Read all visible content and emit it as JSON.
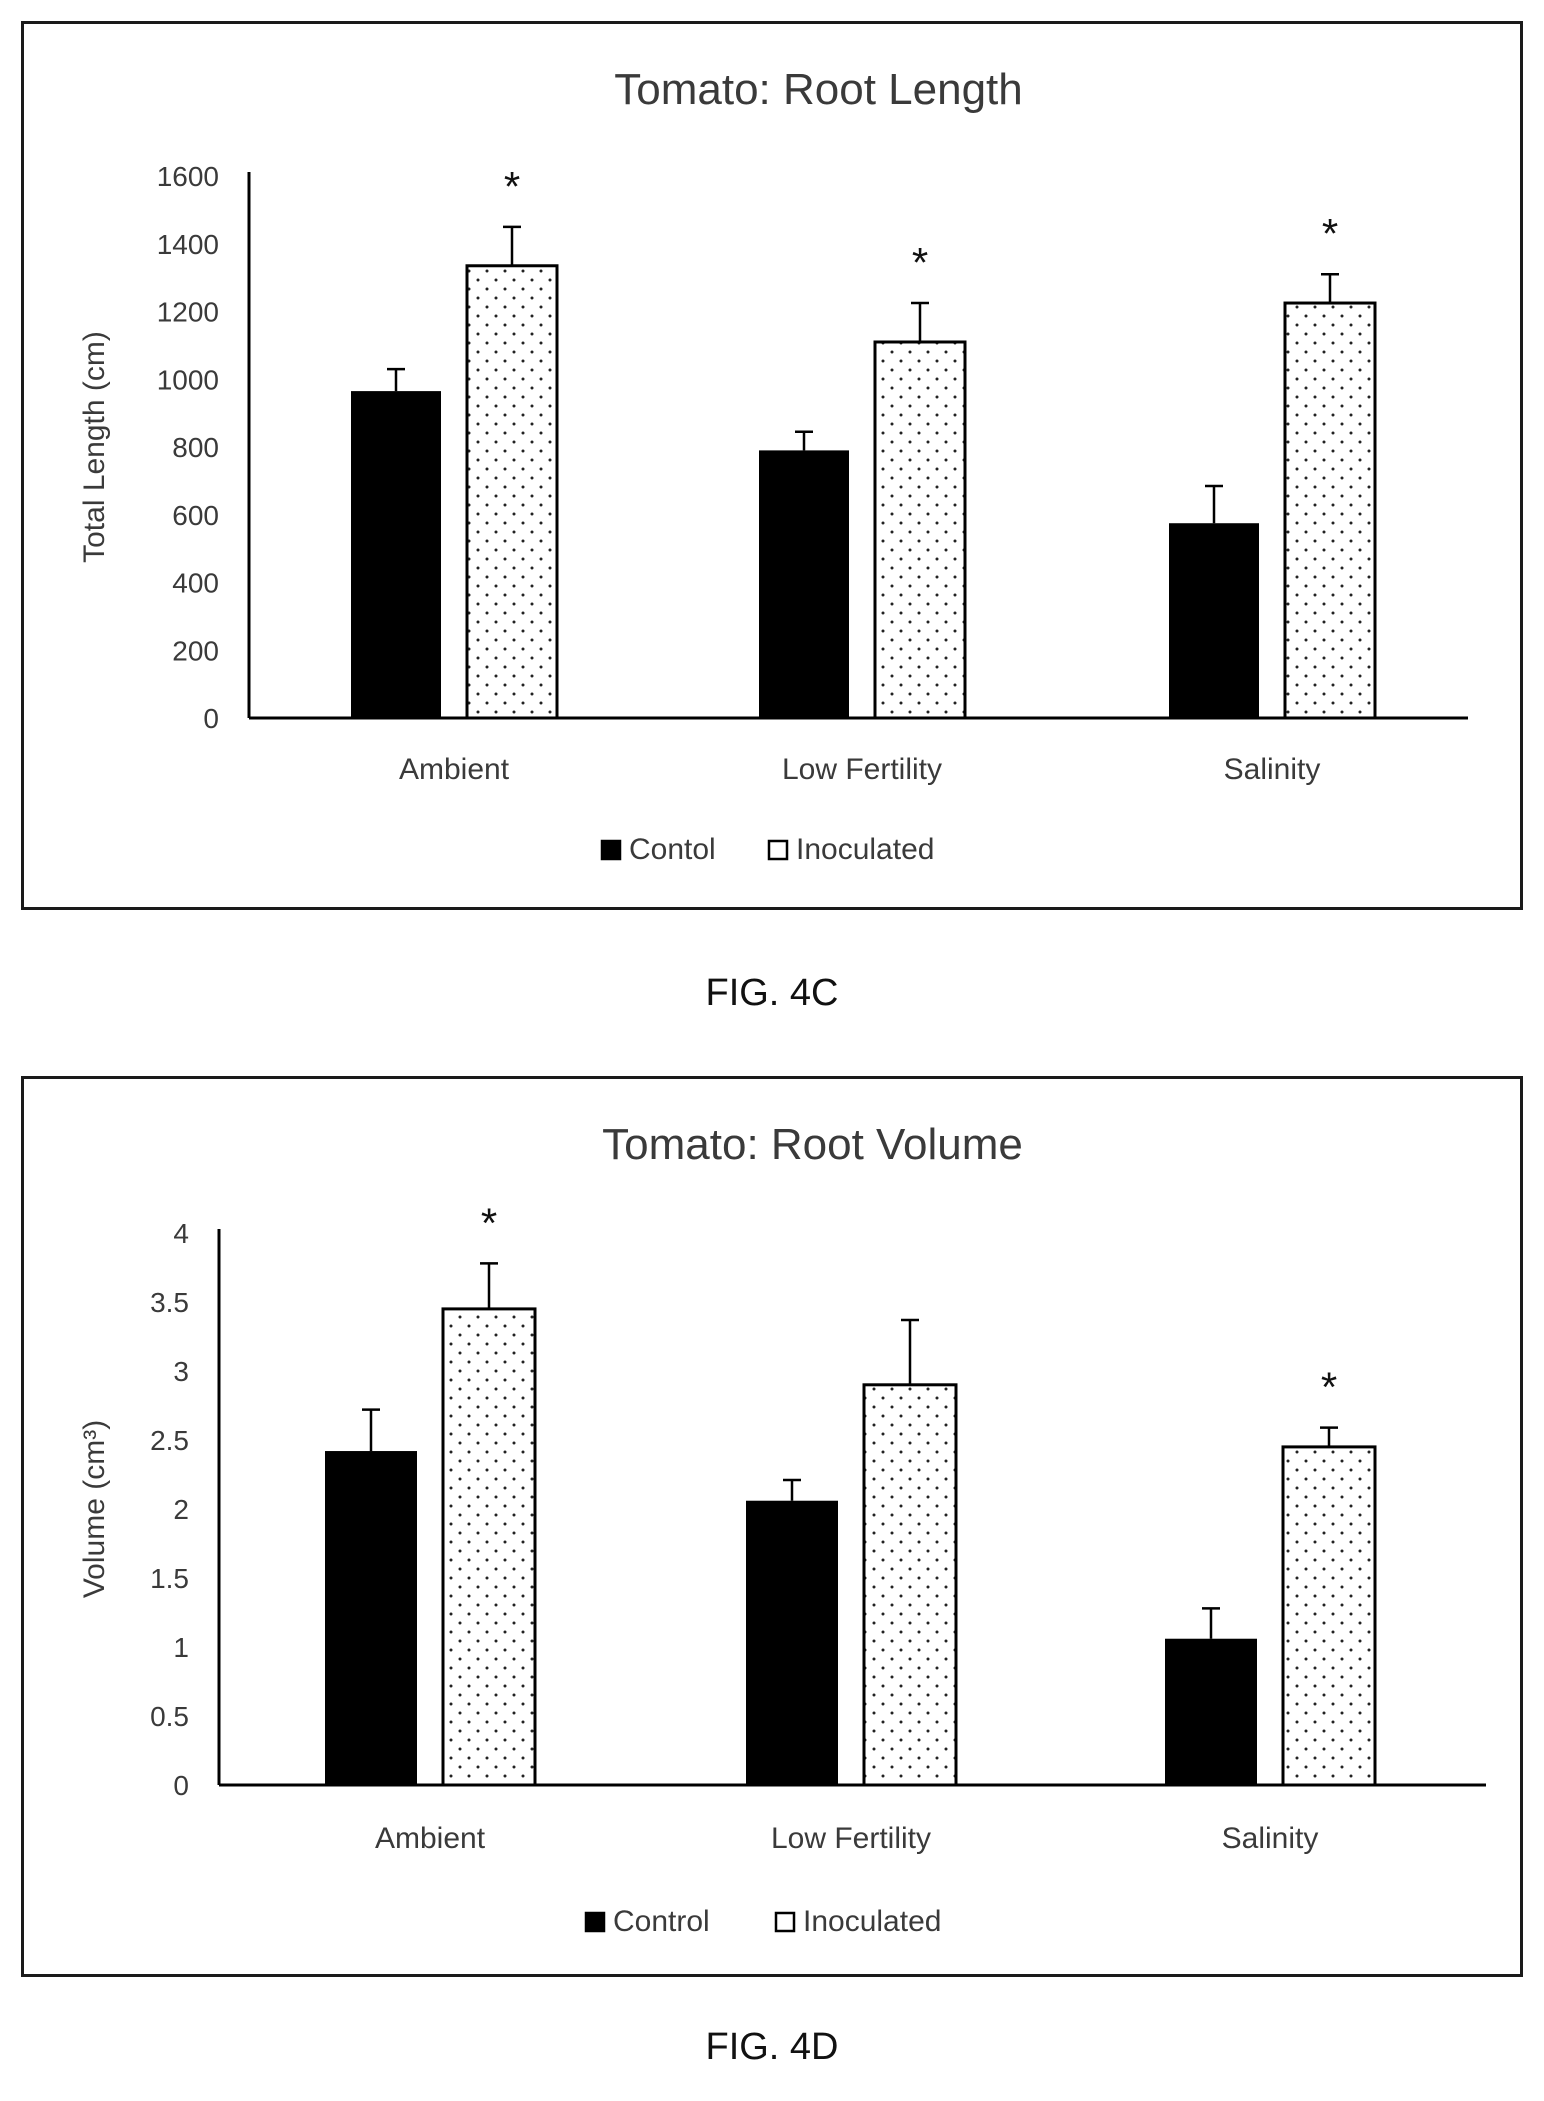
{
  "figures": [
    {
      "caption": "FIG. 4C"
    },
    {
      "caption": "FIG. 4D"
    }
  ],
  "colors": {
    "control": "#000000",
    "inoculated_fill": "#ffffff",
    "inoculated_dots": "#222222",
    "axis": "#000000",
    "text": "#3a3a3a"
  },
  "chart_data": [
    {
      "type": "bar",
      "title": "Tomato: Root Length",
      "xlabel": "",
      "ylabel": "Total Length (cm)",
      "categories": [
        "Ambient",
        "Low Fertility",
        "Salinity"
      ],
      "ylim": [
        0,
        1600
      ],
      "yticks": [
        "0",
        "200",
        "400",
        "600",
        "800",
        "1000",
        "1200",
        "1400",
        "1600"
      ],
      "grid": false,
      "legend_position": "bottom",
      "series": [
        {
          "name": "Contol",
          "values": [
            965,
            790,
            575
          ],
          "errors": [
            65,
            55,
            110
          ],
          "pattern": "solid"
        },
        {
          "name": "Inoculated",
          "values": [
            1335,
            1110,
            1225
          ],
          "errors": [
            115,
            115,
            85
          ],
          "pattern": "dotted"
        }
      ],
      "annotations": [
        {
          "series": 1,
          "category": 0,
          "text": "*"
        },
        {
          "series": 1,
          "category": 1,
          "text": "*"
        },
        {
          "series": 1,
          "category": 2,
          "text": "*"
        }
      ]
    },
    {
      "type": "bar",
      "title": "Tomato: Root Volume",
      "xlabel": "",
      "ylabel": "Volume (cm³)",
      "categories": [
        "Ambient",
        "Low Fertility",
        "Salinity"
      ],
      "ylim": [
        0,
        4
      ],
      "yticks": [
        "0",
        "0.5",
        "1",
        "1.5",
        "2",
        "2.5",
        "3",
        "3.5",
        "4"
      ],
      "grid": false,
      "legend_position": "bottom",
      "series": [
        {
          "name": "Control",
          "values": [
            2.42,
            2.06,
            1.06
          ],
          "errors": [
            0.3,
            0.15,
            0.22
          ],
          "pattern": "solid"
        },
        {
          "name": "Inoculated",
          "values": [
            3.45,
            2.9,
            2.45
          ],
          "errors": [
            0.33,
            0.47,
            0.14
          ],
          "pattern": "dotted"
        }
      ],
      "annotations": [
        {
          "series": 1,
          "category": 0,
          "text": "*"
        },
        {
          "series": 1,
          "category": 2,
          "text": "*"
        }
      ]
    }
  ]
}
